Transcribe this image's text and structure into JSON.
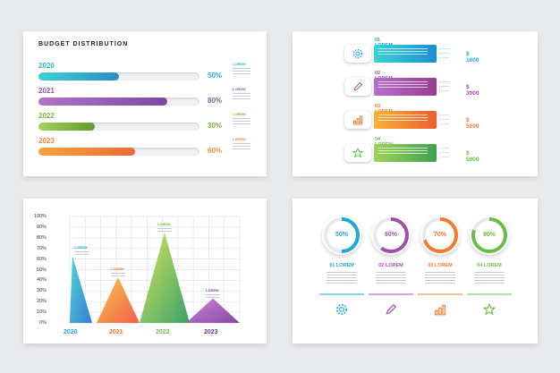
{
  "budget": {
    "title": "BUDGET DISTRIBUTION",
    "rows": [
      {
        "year": "2020",
        "percent": "50%",
        "label": "LOREM",
        "fill": 0.5,
        "color": "#2bb3c0"
      },
      {
        "year": "2021",
        "percent": "80%",
        "label": "LOREM",
        "fill": 0.8,
        "color": "#8a56ad"
      },
      {
        "year": "2022",
        "percent": "30%",
        "label": "LOREM",
        "fill": 0.3,
        "color": "#7cb23a"
      },
      {
        "year": "2023",
        "percent": "60%",
        "label": "LOREM",
        "fill": 0.6,
        "color": "#f2873a"
      }
    ]
  },
  "steps": {
    "items": [
      {
        "title": "01 LOREM",
        "amount": "$ 1000",
        "icon": "gear-icon",
        "color": "#1aa9d8"
      },
      {
        "title": "02 LOREM",
        "amount": "$ 3000",
        "icon": "pen-icon",
        "color": "#a24ea8"
      },
      {
        "title": "03 LOREM",
        "amount": "$ 5000",
        "icon": "bar-chart-icon",
        "color": "#f27b2c"
      },
      {
        "title": "04 LOREM",
        "amount": "$ 5000",
        "icon": "star-icon",
        "color": "#6cbd45"
      }
    ]
  },
  "chart_data": {
    "type": "area",
    "categories": [
      "2020",
      "2021",
      "2022",
      "2023"
    ],
    "values": [
      63,
      43,
      85,
      23
    ],
    "ylim": [
      0,
      100
    ],
    "yticks": [
      "100%",
      "90%",
      "80%",
      "70%",
      "60%",
      "50%",
      "40%",
      "30%",
      "20%",
      "10%",
      "0%"
    ],
    "annotations": [
      "LOREM",
      "LOREM",
      "LOREM",
      "LOREM"
    ],
    "grid": true
  },
  "rings": {
    "items": [
      {
        "percent": "50%",
        "title": "01 LOREM",
        "value": 0.5,
        "icon": "gear-icon",
        "color": "#1aa9d8"
      },
      {
        "percent": "60%",
        "title": "02 LOREM",
        "value": 0.6,
        "icon": "pen-icon",
        "color": "#a24ea8"
      },
      {
        "percent": "70%",
        "title": "03 LOREM",
        "value": 0.7,
        "icon": "bar-chart-icon",
        "color": "#f27b2c"
      },
      {
        "percent": "80%",
        "title": "04 LOREM",
        "value": 0.8,
        "icon": "star-icon",
        "color": "#6cbd45"
      }
    ]
  }
}
